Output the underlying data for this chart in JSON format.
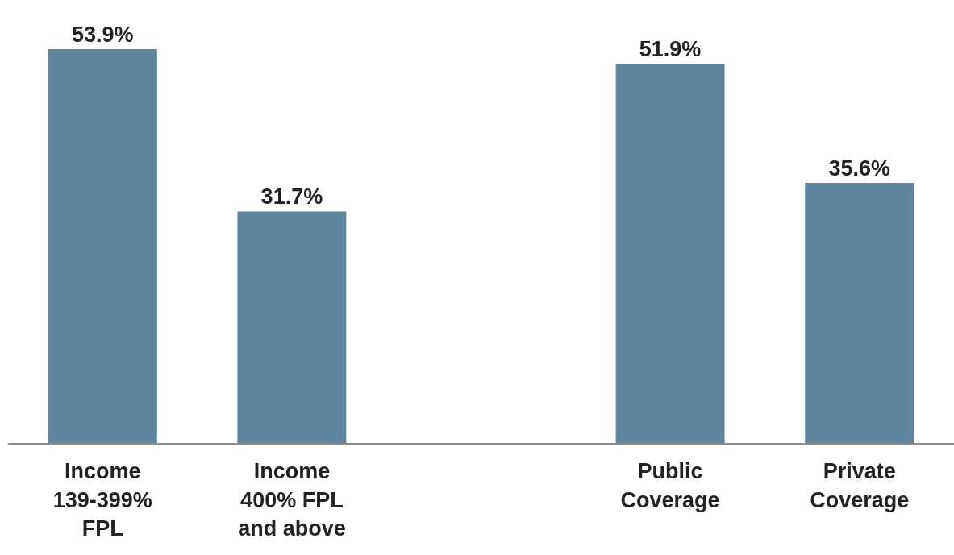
{
  "chart_data": {
    "type": "bar",
    "categories": [
      "Income\n139-399%\nFPL",
      "Income\n400% FPL\nand above",
      null,
      "Public\nCoverage",
      "Private\nCoverage"
    ],
    "values": [
      53.9,
      31.7,
      null,
      51.9,
      35.6
    ],
    "value_labels": [
      "53.9%",
      "31.7%",
      null,
      "51.9%",
      "35.6%"
    ],
    "color": "#5e849e"
  }
}
